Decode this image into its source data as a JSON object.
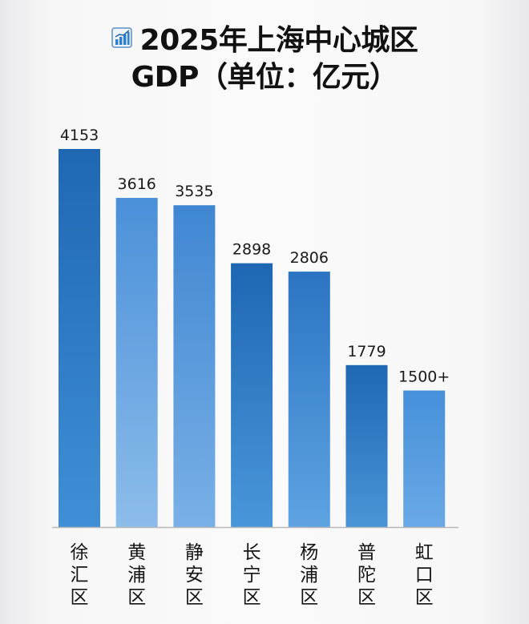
{
  "title_lines": [
    "2025年上海中心城区",
    "GDP（单位：亿元）"
  ],
  "icon": "bar-chart-icon",
  "chart_data": {
    "type": "bar",
    "categories": [
      "徐汇区",
      "黄浦区",
      "静安区",
      "长宁区",
      "杨浦区",
      "普陀区",
      "虹口区"
    ],
    "values": [
      4153,
      3616,
      3535,
      2898,
      2806,
      1779,
      1500
    ],
    "value_labels": [
      "4153",
      "3616",
      "3535",
      "2898",
      "2806",
      "1779",
      "1500+"
    ],
    "title": "2025年上海中心城区 GDP（单位：亿元）",
    "xlabel": "",
    "ylabel": "",
    "ylim": [
      0,
      4153
    ],
    "grid": false,
    "legend": "none",
    "bar_colors": [
      [
        "#1f67b3",
        "#3f8fd6"
      ],
      [
        "#4a90d9",
        "#8cbcea"
      ],
      [
        "#3f86d2",
        "#79b0e6"
      ],
      [
        "#1e66b2",
        "#4a96da"
      ],
      [
        "#2a74c2",
        "#5ea3e2"
      ],
      [
        "#1f67b3",
        "#4a94d8"
      ],
      [
        "#4690da",
        "#6aa9e6"
      ]
    ],
    "axis_color": "#b8b8b8"
  }
}
